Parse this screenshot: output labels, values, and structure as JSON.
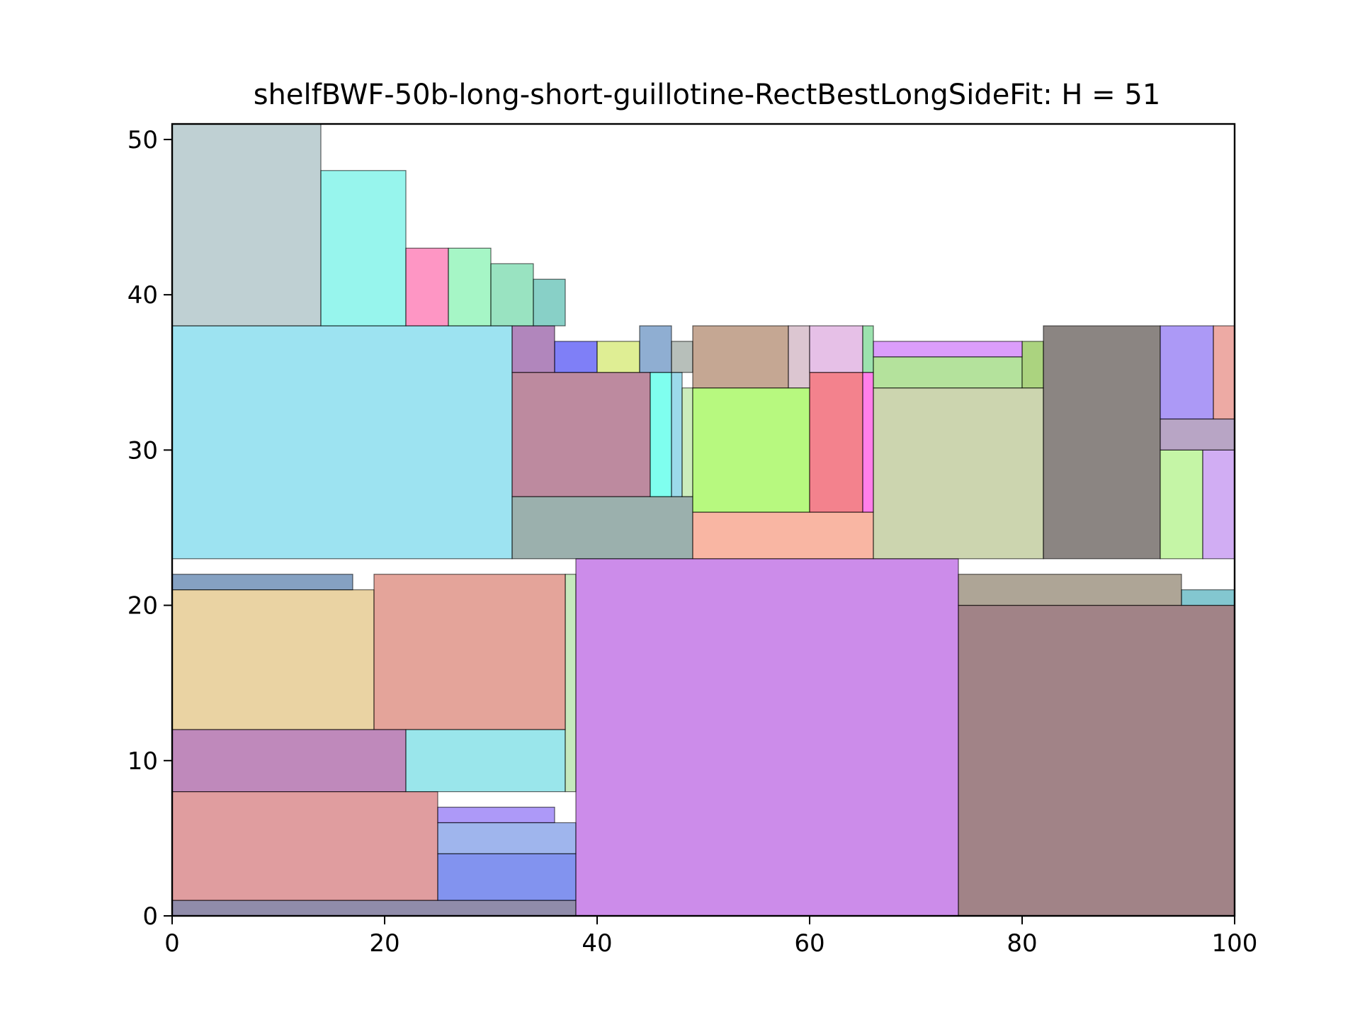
{
  "chart_data": {
    "type": "rectangle-packing",
    "title": "shelfBWF-50b-long-short-guillotine-RectBestLongSideFit: H = 51",
    "xlabel": "",
    "ylabel": "",
    "xlim": [
      0,
      100
    ],
    "ylim": [
      0,
      51
    ],
    "xticks": [
      0,
      20,
      40,
      60,
      80,
      100
    ],
    "yticks": [
      0,
      10,
      20,
      30,
      40,
      50
    ],
    "grid": false,
    "rects": [
      {
        "x": 0,
        "y": 0,
        "w": 38,
        "h": 1,
        "color": "#221a55"
      },
      {
        "x": 0,
        "y": 1,
        "w": 25,
        "h": 7,
        "color": "#c23b3f"
      },
      {
        "x": 25,
        "y": 1,
        "w": 13,
        "h": 3,
        "color": "#0527e0"
      },
      {
        "x": 25,
        "y": 4,
        "w": 13,
        "h": 2,
        "color": "#3f6cdc"
      },
      {
        "x": 25,
        "y": 6,
        "w": 11,
        "h": 1,
        "color": "#5c33f2"
      },
      {
        "x": 0,
        "y": 8,
        "w": 22,
        "h": 4,
        "color": "#801478"
      },
      {
        "x": 22,
        "y": 8,
        "w": 15,
        "h": 4,
        "color": "#35cdd7"
      },
      {
        "x": 37,
        "y": 8,
        "w": 1,
        "h": 14,
        "color": "#8ed47b"
      },
      {
        "x": 0,
        "y": 12,
        "w": 19,
        "h": 9,
        "color": "#d5a847"
      },
      {
        "x": 19,
        "y": 12,
        "w": 18,
        "h": 10,
        "color": "#c94a35"
      },
      {
        "x": 0,
        "y": 21,
        "w": 17,
        "h": 1,
        "color": "#0c4485"
      },
      {
        "x": 38,
        "y": 0,
        "w": 36,
        "h": 23,
        "color": "#991ad6"
      },
      {
        "x": 74,
        "y": 0,
        "w": 26,
        "h": 20,
        "color": "#43080f"
      },
      {
        "x": 74,
        "y": 20,
        "w": 21,
        "h": 2,
        "color": "#5d4c2e"
      },
      {
        "x": 95,
        "y": 20,
        "w": 5,
        "h": 1,
        "color": "#0790a2"
      },
      {
        "x": 0,
        "y": 23,
        "w": 32,
        "h": 15,
        "color": "#3cc7e4"
      },
      {
        "x": 32,
        "y": 23,
        "w": 17,
        "h": 4,
        "color": "#38615c"
      },
      {
        "x": 32,
        "y": 27,
        "w": 13,
        "h": 8,
        "color": "#7c1540"
      },
      {
        "x": 45,
        "y": 27,
        "w": 2,
        "h": 8,
        "color": "#00ffe0"
      },
      {
        "x": 47,
        "y": 27,
        "w": 1,
        "h": 8,
        "color": "#3ab5d6"
      },
      {
        "x": 48,
        "y": 27,
        "w": 1,
        "h": 7,
        "color": "#9adb7a"
      },
      {
        "x": 32,
        "y": 35,
        "w": 4,
        "h": 3,
        "color": "#640e7a"
      },
      {
        "x": 36,
        "y": 35,
        "w": 4,
        "h": 2,
        "color": "#0000ef"
      },
      {
        "x": 40,
        "y": 35,
        "w": 4,
        "h": 2,
        "color": "#bfdd2a"
      },
      {
        "x": 44,
        "y": 35,
        "w": 3,
        "h": 3,
        "color": "#1f5da5"
      },
      {
        "x": 47,
        "y": 35,
        "w": 2,
        "h": 2,
        "color": "#6f7f75"
      },
      {
        "x": 49,
        "y": 23,
        "w": 17,
        "h": 3,
        "color": "#f36d47"
      },
      {
        "x": 49,
        "y": 26,
        "w": 11,
        "h": 8,
        "color": "#70f400"
      },
      {
        "x": 60,
        "y": 26,
        "w": 5,
        "h": 9,
        "color": "#e8061b"
      },
      {
        "x": 65,
        "y": 26,
        "w": 1,
        "h": 9,
        "color": "#ff00d6"
      },
      {
        "x": 49,
        "y": 34,
        "w": 9,
        "h": 4,
        "color": "#8c5027"
      },
      {
        "x": 58,
        "y": 34,
        "w": 2,
        "h": 4,
        "color": "#b98ea3"
      },
      {
        "x": 60,
        "y": 35,
        "w": 5,
        "h": 3,
        "color": "#cd82cf"
      },
      {
        "x": 65,
        "y": 35,
        "w": 1,
        "h": 3,
        "color": "#3ac55d"
      },
      {
        "x": 66,
        "y": 23,
        "w": 16,
        "h": 11,
        "color": "#99ac60"
      },
      {
        "x": 66,
        "y": 34,
        "w": 14,
        "h": 2,
        "color": "#6ac53a"
      },
      {
        "x": 80,
        "y": 34,
        "w": 2,
        "h": 3,
        "color": "#58a800"
      },
      {
        "x": 66,
        "y": 36,
        "w": 14,
        "h": 1,
        "color": "#b73cf8"
      },
      {
        "x": 82,
        "y": 23,
        "w": 11,
        "h": 15,
        "color": "#170b06"
      },
      {
        "x": 93,
        "y": 23,
        "w": 4,
        "h": 7,
        "color": "#8ceb4e"
      },
      {
        "x": 97,
        "y": 23,
        "w": 3,
        "h": 7,
        "color": "#a35be8"
      },
      {
        "x": 93,
        "y": 30,
        "w": 7,
        "h": 2,
        "color": "#714b8b"
      },
      {
        "x": 93,
        "y": 32,
        "w": 5,
        "h": 6,
        "color": "#5934ee"
      },
      {
        "x": 98,
        "y": 32,
        "w": 2,
        "h": 6,
        "color": "#db5549"
      },
      {
        "x": 0,
        "y": 38,
        "w": 14,
        "h": 13,
        "color": "#7fa1a8"
      },
      {
        "x": 14,
        "y": 38,
        "w": 8,
        "h": 10,
        "color": "#2febdb"
      },
      {
        "x": 22,
        "y": 38,
        "w": 4,
        "h": 5,
        "color": "#fd2e8a"
      },
      {
        "x": 26,
        "y": 38,
        "w": 4,
        "h": 5,
        "color": "#4eee8d"
      },
      {
        "x": 30,
        "y": 38,
        "w": 4,
        "h": 4,
        "color": "#33c884"
      },
      {
        "x": 34,
        "y": 38,
        "w": 3,
        "h": 3,
        "color": "#12a28f"
      }
    ]
  }
}
